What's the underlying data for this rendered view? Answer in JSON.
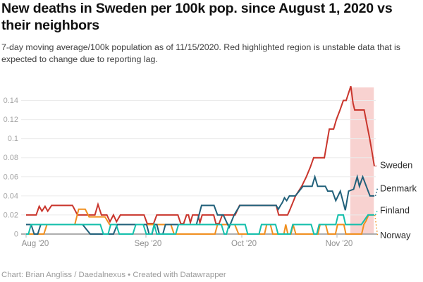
{
  "header": {
    "title": "New deaths in Sweden per 100k pop. since August 1, 2020 vs their neighbors",
    "subtitle": "7-day moving average/100k population as of 11/15/2020. Red highlighted region is unstable data that is expected to change due to reporting lag."
  },
  "footer": {
    "text": "Chart: Brian Angliss / Daedalnexus • Created with Datawrapper"
  },
  "chart_data": {
    "type": "line",
    "title": "New deaths in Sweden per 100k pop. since August 1, 2020 vs their neighbors",
    "subtitle": "7-day moving average/100k population as of 11/15/2020. Red highlighted region is unstable data that is expected to change due to reporting lag.",
    "x_unit": "days since 2020-08-01",
    "x_range_days": [
      0,
      106
    ],
    "x_axis": {
      "ticks": [
        {
          "label": "Aug '20",
          "day": 0
        },
        {
          "label": "Sep '20",
          "day": 31
        },
        {
          "label": "Oct '20",
          "day": 61
        },
        {
          "label": "Nov '20",
          "day": 92
        }
      ]
    },
    "y_axis": {
      "ticks": [
        {
          "label": "0",
          "value": 0
        },
        {
          "label": "0.02",
          "value": 0.02
        },
        {
          "label": "0.04",
          "value": 0.04
        },
        {
          "label": "0.06",
          "value": 0.06
        },
        {
          "label": "0.08",
          "value": 0.08
        },
        {
          "label": "0.1",
          "value": 0.1
        },
        {
          "label": "0.12",
          "value": 0.12
        },
        {
          "label": "0.14",
          "value": 0.14
        }
      ],
      "range": [
        0,
        0.155
      ],
      "grid": true
    },
    "highlight_region": {
      "start_day": 96.8,
      "end_day": 105.3,
      "color": "#f8d2d0",
      "meaning": "unstable data expected to change due to reporting lag"
    },
    "legend_position": "right-of-line-ends",
    "series": [
      {
        "name": "Sweden",
        "color": "#c9352c",
        "points": [
          [
            0,
            0.02
          ],
          [
            2.6,
            0.02
          ],
          [
            3.4,
            0.029
          ],
          [
            4.1,
            0.024
          ],
          [
            4.9,
            0.029
          ],
          [
            5.6,
            0.024
          ],
          [
            6.6,
            0.03
          ],
          [
            12,
            0.03
          ],
          [
            13.3,
            0.02
          ],
          [
            17.8,
            0.02
          ],
          [
            18.6,
            0.031
          ],
          [
            19.5,
            0.02
          ],
          [
            20.9,
            0.02
          ],
          [
            21.7,
            0.013
          ],
          [
            22.6,
            0.02
          ],
          [
            23.4,
            0.013
          ],
          [
            24.4,
            0.02
          ],
          [
            30.5,
            0.02
          ],
          [
            31.4,
            0.011
          ],
          [
            33.4,
            0.011
          ],
          [
            34.4,
            0.02
          ],
          [
            41,
            0.02
          ],
          [
            41.9,
            0.011
          ],
          [
            42.8,
            0.011
          ],
          [
            43.7,
            0.02
          ],
          [
            44.3,
            0.02
          ],
          [
            44.9,
            0.012
          ],
          [
            45.6,
            0.02
          ],
          [
            47.3,
            0.02
          ],
          [
            47.9,
            0.012
          ],
          [
            48.6,
            0.02
          ],
          [
            52.2,
            0.02
          ],
          [
            52.9,
            0.011
          ],
          [
            53.9,
            0.011
          ],
          [
            54.9,
            0.02
          ],
          [
            58.9,
            0.02
          ],
          [
            60.3,
            0.03
          ],
          [
            72.2,
            0.03
          ],
          [
            73,
            0.02
          ],
          [
            75.9,
            0.02
          ],
          [
            76.6,
            0.025
          ],
          [
            78.5,
            0.04
          ],
          [
            80.5,
            0.05
          ],
          [
            82,
            0.06
          ],
          [
            83.3,
            0.07
          ],
          [
            84.4,
            0.08
          ],
          [
            87.9,
            0.08
          ],
          [
            88.7,
            0.095
          ],
          [
            89.5,
            0.11
          ],
          [
            90.9,
            0.11
          ],
          [
            91.8,
            0.12
          ],
          [
            93.1,
            0.13
          ],
          [
            94.3,
            0.14
          ],
          [
            95.3,
            0.14
          ],
          [
            97,
            0.155
          ],
          [
            97.8,
            0.137
          ],
          [
            98.4,
            0.13
          ],
          [
            101.8,
            0.13
          ],
          [
            102.8,
            0.115
          ],
          [
            103.8,
            0.1
          ],
          [
            104.7,
            0.085
          ],
          [
            105.5,
            0.071
          ]
        ]
      },
      {
        "name": "Denmark",
        "color": "#21607a",
        "points": [
          [
            0,
            0.01
          ],
          [
            1.3,
            0.01
          ],
          [
            2.1,
            0
          ],
          [
            3,
            0
          ],
          [
            3.8,
            0.01
          ],
          [
            14.6,
            0.01
          ],
          [
            16.6,
            0
          ],
          [
            22.6,
            0
          ],
          [
            23.6,
            0.01
          ],
          [
            31.2,
            0.01
          ],
          [
            32,
            0
          ],
          [
            32.9,
            0
          ],
          [
            33.6,
            0.01
          ],
          [
            34.4,
            0.01
          ],
          [
            35.2,
            0
          ],
          [
            36.3,
            0
          ],
          [
            37.1,
            0.01
          ],
          [
            46.8,
            0.01
          ],
          [
            47.6,
            0.02
          ],
          [
            48.4,
            0.03
          ],
          [
            52.3,
            0.03
          ],
          [
            53.4,
            0.02
          ],
          [
            55.2,
            0.02
          ],
          [
            57,
            0.007
          ],
          [
            58.6,
            0.02
          ],
          [
            59.5,
            0.025
          ],
          [
            60.4,
            0.03
          ],
          [
            72.2,
            0.03
          ],
          [
            72.9,
            0.026
          ],
          [
            73.6,
            0.03
          ],
          [
            74.2,
            0.033
          ],
          [
            74.9,
            0.038
          ],
          [
            75.6,
            0.035
          ],
          [
            76.5,
            0.04
          ],
          [
            78.4,
            0.04
          ],
          [
            79.2,
            0.043
          ],
          [
            80.9,
            0.05
          ],
          [
            83.9,
            0.05
          ],
          [
            84.8,
            0.06
          ],
          [
            85.7,
            0.05
          ],
          [
            88.2,
            0.05
          ],
          [
            89,
            0.045
          ],
          [
            90.5,
            0.045
          ],
          [
            91.6,
            0.035
          ],
          [
            93.2,
            0.045
          ],
          [
            95,
            0.025
          ],
          [
            96.2,
            0.045
          ],
          [
            98,
            0.047
          ],
          [
            99.3,
            0.06
          ],
          [
            100.1,
            0.05
          ],
          [
            101.3,
            0.06
          ],
          [
            102.6,
            0.05
          ],
          [
            103.9,
            0.04
          ],
          [
            105.5,
            0.04
          ]
        ]
      },
      {
        "name": "Finland",
        "color": "#13bfab",
        "points": [
          [
            0,
            0
          ],
          [
            0.6,
            0
          ],
          [
            1.3,
            0.01
          ],
          [
            19.2,
            0.01
          ],
          [
            20,
            0
          ],
          [
            21.2,
            0
          ],
          [
            21.9,
            0.01
          ],
          [
            23.3,
            0.01
          ],
          [
            24.1,
            0
          ],
          [
            27.6,
            0
          ],
          [
            28.4,
            0.01
          ],
          [
            30.3,
            0.01
          ],
          [
            31.1,
            0
          ],
          [
            32.8,
            0
          ],
          [
            33.6,
            0.01
          ],
          [
            34.4,
            0
          ],
          [
            40.3,
            0
          ],
          [
            41.2,
            0.01
          ],
          [
            54.6,
            0.01
          ],
          [
            55.5,
            0
          ],
          [
            56.2,
            0
          ],
          [
            57,
            0.01
          ],
          [
            62.1,
            0.01
          ],
          [
            62.9,
            0
          ],
          [
            66.6,
            0
          ],
          [
            67.4,
            0.01
          ],
          [
            72,
            0.01
          ],
          [
            72.8,
            0
          ],
          [
            76.8,
            0
          ],
          [
            77.6,
            0.01
          ],
          [
            83.6,
            0.01
          ],
          [
            84.5,
            0
          ],
          [
            85.4,
            0
          ],
          [
            86.2,
            0.01
          ],
          [
            91.6,
            0.01
          ],
          [
            92.4,
            0.02
          ],
          [
            94.3,
            0.02
          ],
          [
            95.1,
            0.01
          ],
          [
            100.8,
            0.01
          ],
          [
            102,
            0.015
          ],
          [
            103.2,
            0.02
          ],
          [
            105.5,
            0.02
          ]
        ]
      },
      {
        "name": "Norway",
        "color": "#f08f1e",
        "points": [
          [
            0,
            0
          ],
          [
            4.6,
            0
          ],
          [
            5.4,
            0.01
          ],
          [
            12.6,
            0.01
          ],
          [
            13.6,
            0.026
          ],
          [
            15.3,
            0.026
          ],
          [
            16.3,
            0.018
          ],
          [
            20.4,
            0.018
          ],
          [
            21.6,
            0.01
          ],
          [
            38.8,
            0.01
          ],
          [
            39.8,
            0
          ],
          [
            52.6,
            0
          ],
          [
            53.4,
            0.01
          ],
          [
            58.8,
            0.01
          ],
          [
            60,
            0
          ],
          [
            68.4,
            0
          ],
          [
            69.1,
            0.01
          ],
          [
            70.3,
            0.01
          ],
          [
            71.1,
            0
          ],
          [
            74.7,
            0
          ],
          [
            75.3,
            0.01
          ],
          [
            76,
            0
          ],
          [
            77,
            0
          ],
          [
            77.7,
            0.01
          ],
          [
            78.6,
            0
          ],
          [
            85.8,
            0
          ],
          [
            86.5,
            0.01
          ],
          [
            88.3,
            0.01
          ],
          [
            89.1,
            0
          ],
          [
            91.5,
            0
          ],
          [
            92.2,
            0.01
          ],
          [
            94.5,
            0.01
          ],
          [
            95.2,
            0
          ],
          [
            100.9,
            0
          ],
          [
            101.7,
            0.01
          ],
          [
            102.5,
            0.014
          ],
          [
            103.4,
            0.02
          ],
          [
            105.3,
            0.02
          ]
        ]
      }
    ],
    "end_labels": [
      "Sweden",
      "Denmark",
      "Finland",
      "Norway"
    ],
    "colors": {
      "grid": "#ebebeb",
      "baseline": "#a3a3a3",
      "tick": "#b5b5b5",
      "y_label": "#a6a6a6",
      "x_label": "#8f8f8f",
      "legend_text": "#2b2b2b"
    }
  }
}
